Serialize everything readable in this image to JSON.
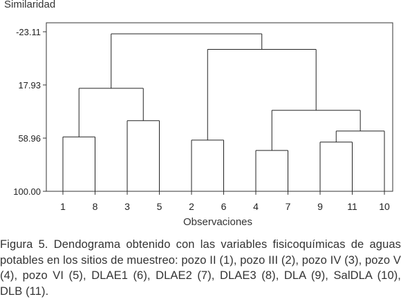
{
  "chart_data": {
    "type": "dendrogram",
    "ylabel": "Similaridad",
    "xlabel": "Observaciones",
    "yticks": [
      "-23.11",
      "17.93",
      "58.96",
      "100.00"
    ],
    "ylim": [
      -23.11,
      100.0
    ],
    "leaf_order": [
      "1",
      "8",
      "3",
      "5",
      "2",
      "6",
      "4",
      "7",
      "9",
      "11",
      "10"
    ],
    "merges": [
      {
        "a": "2",
        "b": "6",
        "similarity": 60.5
      },
      {
        "a": "1",
        "b": "8",
        "similarity": 58.0
      },
      {
        "a": "3",
        "b": "5",
        "similarity": 45.5
      },
      {
        "a": "9",
        "b": "11",
        "similarity": 62.0
      },
      {
        "a": "4",
        "b": "7",
        "similarity": 68.5
      },
      {
        "a": "(9,11)",
        "b": "10",
        "similarity": 53.5
      },
      {
        "a": "(1,8)",
        "b": "(3,5)",
        "similarity": 20.5
      },
      {
        "a": "(4,7)",
        "b": "((9,11),10)",
        "similarity": 37.5
      },
      {
        "a": "(2,6)",
        "b": "((4,7),((9,11),10))",
        "similarity": -9.5
      },
      {
        "a": "((1,8),(3,5))",
        "b": "rest",
        "similarity": -21.5
      }
    ]
  },
  "caption": "Figura 5. Dendograma obtenido con las variables fisicoquímicas de aguas potables en los sitios de muestreo: pozo II (1), pozo III (2), pozo IV (3), pozo V (4), pozo VI (5), DLAE1 (6), DLAE2 (7), DLAE3 (8), DLA (9), SalDLA (10), DLB (11)."
}
